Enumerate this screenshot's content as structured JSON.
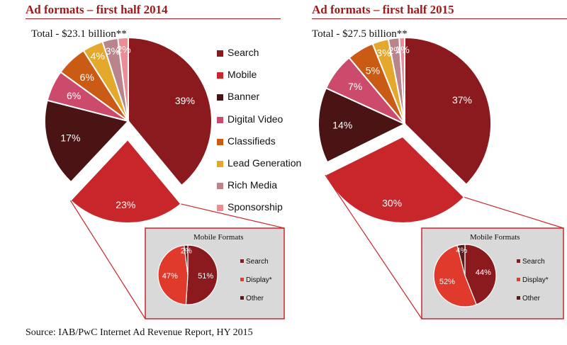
{
  "legend": [
    {
      "label": "Search",
      "color": "#8b1a1e"
    },
    {
      "label": "Mobile",
      "color": "#c8262b"
    },
    {
      "label": "Banner",
      "color": "#4a1414"
    },
    {
      "label": "Digital Video",
      "color": "#cc4b6c"
    },
    {
      "label": "Classifieds",
      "color": "#c95b14"
    },
    {
      "label": "Lead Generation",
      "color": "#e4a82c"
    },
    {
      "label": "Rich Media",
      "color": "#b9848c"
    },
    {
      "label": "Sponsorship",
      "color": "#ec8c94"
    }
  ],
  "chart_data": [
    {
      "type": "pie",
      "title": "Ad formats – first half 2014",
      "subtitle": "Total - $23.1 billion**",
      "categories": [
        "Search",
        "Mobile",
        "Banner",
        "Digital Video",
        "Classifieds",
        "Lead Generation",
        "Rich Media",
        "Sponsorship"
      ],
      "values": [
        39,
        23,
        17,
        6,
        6,
        4,
        3,
        2
      ],
      "labels": [
        "39%",
        "23%",
        "17%",
        "6%",
        "6%",
        "4%",
        "3%",
        "2%"
      ],
      "exploded": "Mobile",
      "inset": {
        "type": "pie",
        "title": "Mobile Formats",
        "categories": [
          "Search",
          "Display*",
          "Other"
        ],
        "values": [
          51,
          47,
          2
        ],
        "labels": [
          "51%",
          "47%",
          "2%"
        ],
        "colors": [
          "#8b1a1e",
          "#e03a2c",
          "#5a1a1a"
        ]
      }
    },
    {
      "type": "pie",
      "title": "Ad formats – first half 2015",
      "subtitle": "Total - $27.5 billion**",
      "categories": [
        "Search",
        "Mobile",
        "Banner",
        "Digital Video",
        "Classifieds",
        "Lead Generation",
        "Rich Media",
        "Sponsorship"
      ],
      "values": [
        37,
        30,
        14,
        7,
        5,
        3,
        2,
        1
      ],
      "labels": [
        "37%",
        "30%",
        "14%",
        "7%",
        "5%",
        "3%",
        "2%",
        "1%"
      ],
      "exploded": "Mobile",
      "inset": {
        "type": "pie",
        "title": "Mobile Formats",
        "categories": [
          "Search",
          "Display*",
          "Other"
        ],
        "values": [
          44,
          52,
          4
        ],
        "labels": [
          "44%",
          "52%",
          "4%"
        ],
        "colors": [
          "#8b1a1e",
          "#e03a2c",
          "#5a1a1a"
        ]
      }
    }
  ],
  "source": "Source: IAB/PwC Internet Ad Revenue Report, HY 2015"
}
